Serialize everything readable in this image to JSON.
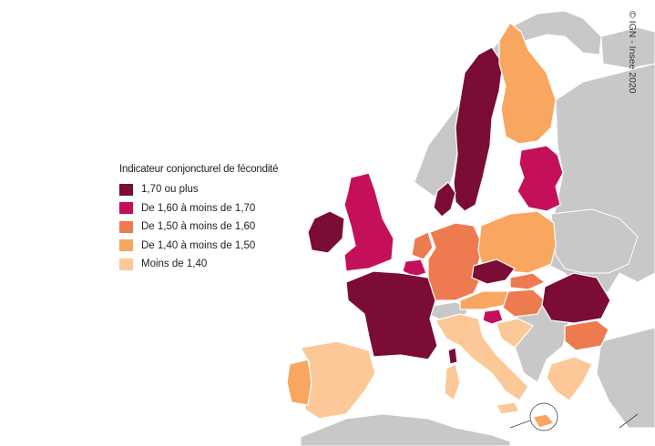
{
  "legend": {
    "title": "Indicateur conjoncturel de fécondité",
    "items": [
      {
        "label": "1,70 ou plus",
        "color": "#7a0c35"
      },
      {
        "label": "De 1,60 à moins de 1,70",
        "color": "#c4105a"
      },
      {
        "label": "De 1,50 à moins de 1,60",
        "color": "#ee7a50"
      },
      {
        "label": "De 1,40 à moins de 1,50",
        "color": "#f8a660"
      },
      {
        "label": "Moins de 1,40",
        "color": "#fcc898"
      }
    ]
  },
  "credit": "© IGN - Insee 2020",
  "colors": {
    "sea": "#ffffff",
    "non_eu_land": "#c8c8c8",
    "border": "#ffffff"
  }
}
